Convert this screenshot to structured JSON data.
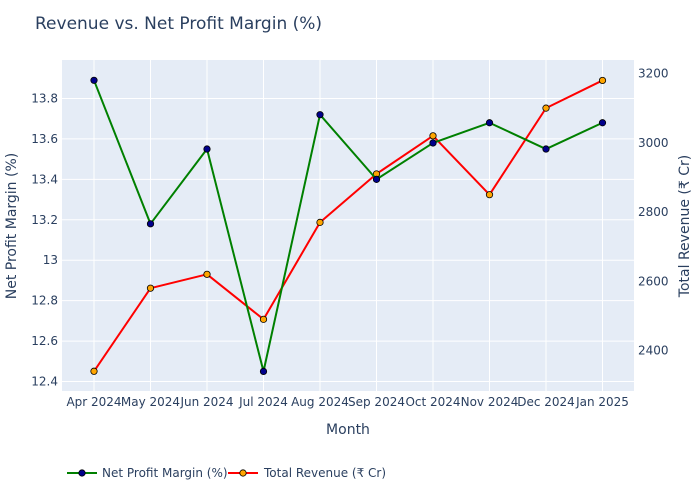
{
  "chart_data": {
    "type": "line",
    "title": "Revenue vs. Net Profit Margin (%)",
    "xlabel": "Month",
    "ylabel_left": "Net Profit Margin (%)",
    "ylabel_right": "Total Revenue (₹ Cr)",
    "categories": [
      "Apr 2024",
      "May 2024",
      "Jun 2024",
      "Jul 2024",
      "Aug 2024",
      "Sep 2024",
      "Oct 2024",
      "Nov 2024",
      "Dec 2024",
      "Jan 2025"
    ],
    "y_left_ticks": [
      "12.4",
      "12.6",
      "12.8",
      "13",
      "13.2",
      "13.4",
      "13.6",
      "13.8"
    ],
    "y_right_ticks": [
      "2400",
      "2600",
      "2800",
      "3000",
      "3200"
    ],
    "series": [
      {
        "name": "Net Profit Margin (%)",
        "axis": "left",
        "color": "#008000",
        "marker_color": "#00008b",
        "values": [
          13.89,
          13.18,
          13.55,
          12.45,
          13.72,
          13.4,
          13.58,
          13.68,
          13.55,
          13.68
        ]
      },
      {
        "name": "Total Revenue (₹ Cr)",
        "axis": "right",
        "color": "#ff0000",
        "marker_color": "#ffa500",
        "values": [
          2340,
          2580,
          2620,
          2490,
          2770,
          2910,
          3020,
          2850,
          3100,
          3180
        ]
      }
    ],
    "grid": true,
    "legend_position": "bottom-left"
  }
}
